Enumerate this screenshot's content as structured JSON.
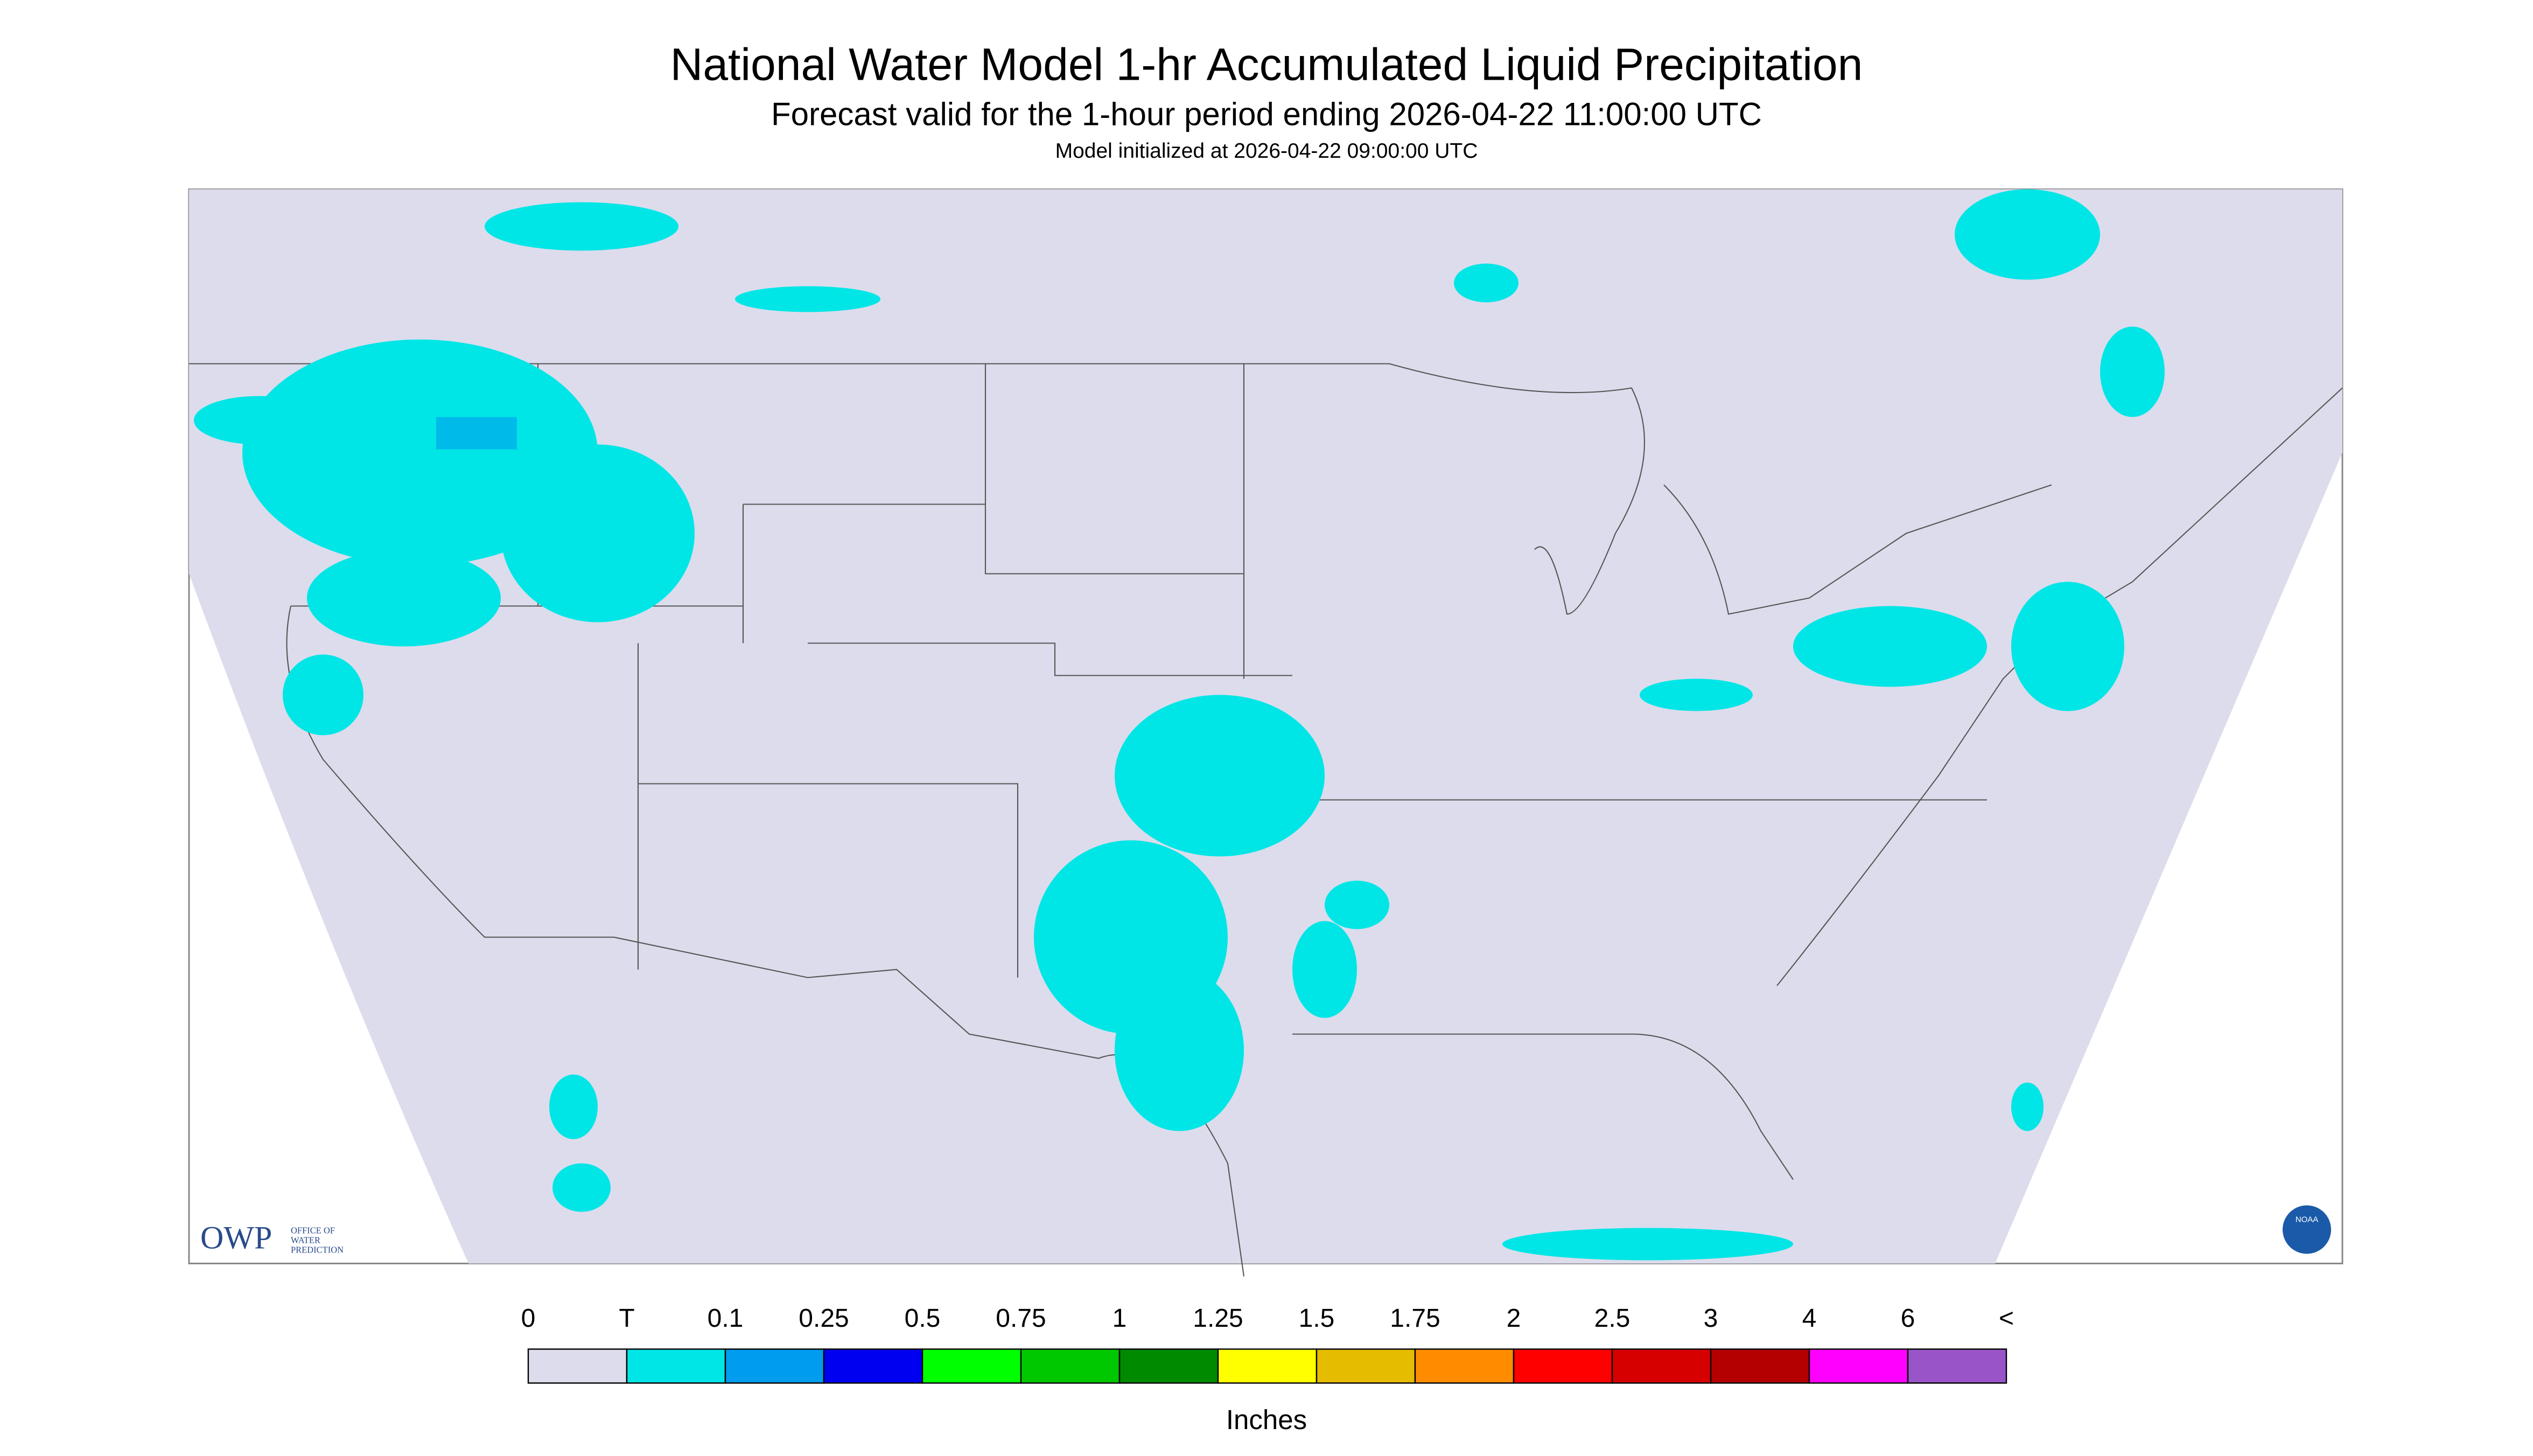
{
  "header": {
    "title": "National Water Model 1-hr Accumulated Liquid Precipitation",
    "subtitle": "Forecast valid for the 1-hour period ending 2026-04-22 11:00:00 UTC",
    "init": "Model initialized at 2026-04-22 09:00:00 UTC"
  },
  "map": {
    "logo": {
      "acronym": "OWP",
      "name": [
        "OFFICE OF",
        "WATER",
        "PREDICTION"
      ]
    },
    "badge": "NOAA"
  },
  "legend": {
    "labels": [
      "0",
      "T",
      "0.1",
      "0.25",
      "0.5",
      "0.75",
      "1",
      "1.25",
      "1.5",
      "1.75",
      "2",
      "2.5",
      "3",
      "4",
      "6",
      "<"
    ],
    "colors": [
      "#dcdcec",
      "#00e6e6",
      "#009ced",
      "#0000f0",
      "#00ff00",
      "#00c800",
      "#008a00",
      "#ffff00",
      "#e6bc00",
      "#ff8c00",
      "#ff0000",
      "#d70000",
      "#b40000",
      "#ff00ff",
      "#9955c8"
    ],
    "unit": "Inches"
  }
}
